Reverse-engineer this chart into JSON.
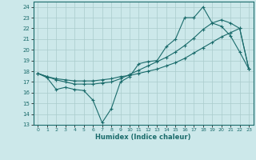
{
  "title": "",
  "xlabel": "Humidex (Indice chaleur)",
  "ylabel": "",
  "bg_color": "#cce8ea",
  "grid_color": "#aacccc",
  "line_color": "#1a6b6b",
  "ylim": [
    13,
    24.5
  ],
  "xlim": [
    -0.5,
    23.5
  ],
  "yticks": [
    13,
    14,
    15,
    16,
    17,
    18,
    19,
    20,
    21,
    22,
    23,
    24
  ],
  "xticks": [
    0,
    1,
    2,
    3,
    4,
    5,
    6,
    7,
    8,
    9,
    10,
    11,
    12,
    13,
    14,
    15,
    16,
    17,
    18,
    19,
    20,
    21,
    22,
    23
  ],
  "series1_x": [
    0,
    1,
    2,
    3,
    4,
    5,
    6,
    7,
    8,
    9,
    10,
    11,
    12,
    13,
    14,
    15,
    16,
    17,
    18,
    19,
    20,
    21,
    22,
    23
  ],
  "series1_y": [
    17.8,
    17.4,
    16.3,
    16.5,
    16.3,
    16.2,
    15.3,
    13.2,
    14.5,
    17.0,
    17.5,
    18.7,
    18.9,
    19.0,
    20.3,
    21.0,
    23.0,
    23.0,
    24.0,
    22.5,
    22.2,
    21.3,
    19.8,
    18.2
  ],
  "series2_x": [
    0,
    1,
    2,
    3,
    4,
    5,
    6,
    7,
    8,
    9,
    10,
    11,
    12,
    13,
    14,
    15,
    16,
    17,
    18,
    19,
    20,
    21,
    22,
    23
  ],
  "series2_y": [
    17.8,
    17.5,
    17.3,
    17.2,
    17.1,
    17.1,
    17.1,
    17.2,
    17.3,
    17.5,
    17.6,
    17.8,
    18.0,
    18.2,
    18.5,
    18.8,
    19.2,
    19.7,
    20.2,
    20.7,
    21.2,
    21.6,
    22.0,
    18.2
  ],
  "series3_x": [
    0,
    1,
    2,
    3,
    4,
    5,
    6,
    7,
    8,
    9,
    10,
    11,
    12,
    13,
    14,
    15,
    16,
    17,
    18,
    19,
    20,
    21,
    22,
    23
  ],
  "series3_y": [
    17.8,
    17.5,
    17.2,
    17.0,
    16.8,
    16.8,
    16.8,
    16.9,
    17.0,
    17.3,
    17.7,
    18.1,
    18.5,
    18.9,
    19.3,
    19.8,
    20.4,
    21.1,
    21.9,
    22.5,
    22.8,
    22.5,
    22.0,
    18.2
  ]
}
